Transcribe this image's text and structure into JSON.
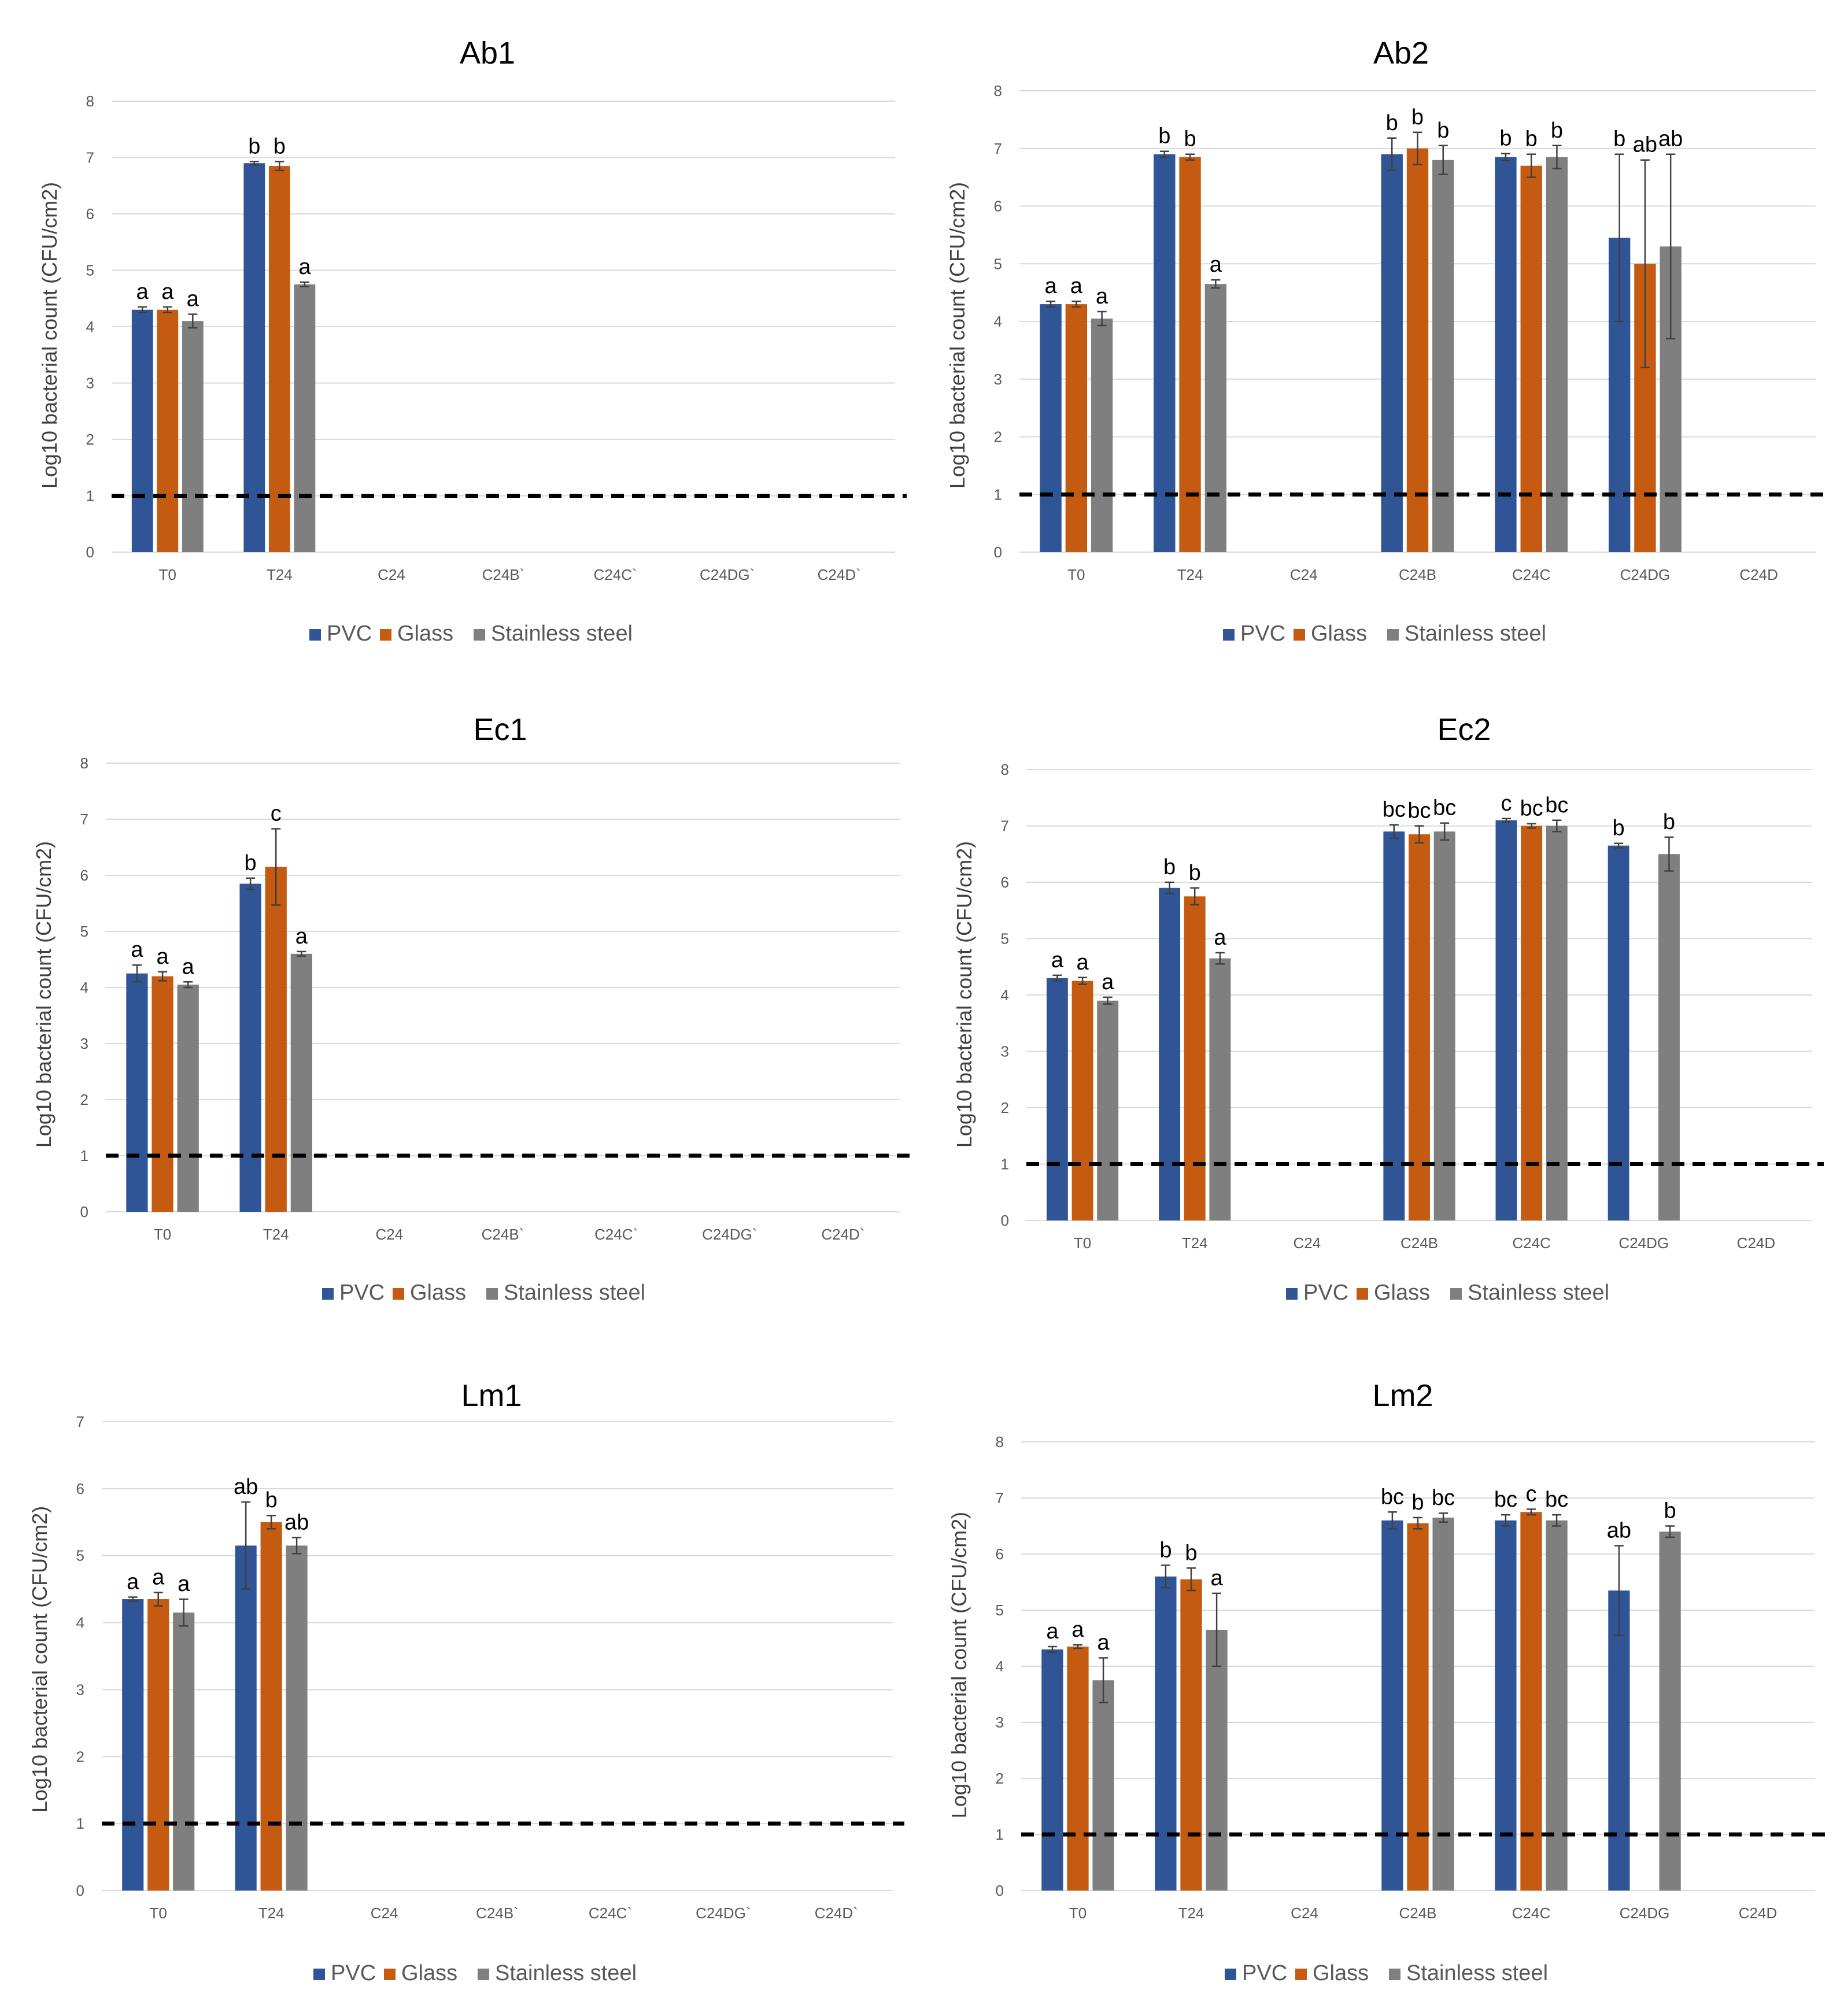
{
  "colors": {
    "PVC": "#2f5597",
    "Glass": "#c55a11",
    "Stainless steel": "#7f7f7f",
    "gridline": "#d9d9d9",
    "detection_line": "#000000"
  },
  "legend": [
    "PVC",
    "Glass",
    "Stainless steel"
  ],
  "chart_data": [
    {
      "type": "bar",
      "title": "Ab1",
      "ylabel": "Log10 bacterial count (CFU/cm2)",
      "ylim": [
        0,
        8
      ],
      "yticks": [
        0,
        1,
        2,
        3,
        4,
        5,
        6,
        7,
        8
      ],
      "grid": true,
      "legend_position": "bottom",
      "detection_limit": 1,
      "categories": [
        "T0",
        "T24",
        "C24",
        "C24B`",
        "C24C`",
        "C24DG`",
        "C24D`"
      ],
      "series": [
        {
          "name": "PVC",
          "values": [
            4.3,
            6.9,
            null,
            null,
            null,
            null,
            null
          ],
          "errors": [
            0.05,
            0.03,
            null,
            null,
            null,
            null,
            null
          ],
          "letters": [
            "a",
            "b",
            null,
            null,
            null,
            null,
            null
          ]
        },
        {
          "name": "Glass",
          "values": [
            4.3,
            6.85,
            null,
            null,
            null,
            null,
            null
          ],
          "errors": [
            0.05,
            0.08,
            null,
            null,
            null,
            null,
            null
          ],
          "letters": [
            "a",
            "b",
            null,
            null,
            null,
            null,
            null
          ]
        },
        {
          "name": "Stainless steel",
          "values": [
            4.1,
            4.75,
            null,
            null,
            null,
            null,
            null
          ],
          "errors": [
            0.12,
            0.04,
            null,
            null,
            null,
            null,
            null
          ],
          "letters": [
            "a",
            "a",
            null,
            null,
            null,
            null,
            null
          ]
        }
      ]
    },
    {
      "type": "bar",
      "title": "Ab2",
      "ylabel": "Log10 bacterial count (CFU/cm2)",
      "ylim": [
        0,
        8
      ],
      "yticks": [
        0,
        1,
        2,
        3,
        4,
        5,
        6,
        7,
        8
      ],
      "grid": true,
      "legend_position": "bottom",
      "detection_limit": 1,
      "categories": [
        "T0",
        "T24",
        "C24",
        "C24B",
        "C24C",
        "C24DG",
        "C24D"
      ],
      "series": [
        {
          "name": "PVC",
          "values": [
            4.3,
            6.9,
            null,
            6.9,
            6.85,
            5.45,
            null
          ],
          "errors": [
            0.05,
            0.05,
            null,
            0.28,
            0.06,
            1.45,
            null
          ],
          "letters": [
            "a",
            "b",
            null,
            "b",
            "b",
            "b",
            null
          ]
        },
        {
          "name": "Glass",
          "values": [
            4.3,
            6.85,
            null,
            7.0,
            6.7,
            5.0,
            null
          ],
          "errors": [
            0.05,
            0.05,
            null,
            0.28,
            0.2,
            1.8,
            null
          ],
          "letters": [
            "a",
            "b",
            null,
            "b",
            "b",
            "ab",
            null
          ]
        },
        {
          "name": "Stainless steel",
          "values": [
            4.05,
            4.65,
            null,
            6.8,
            6.85,
            5.3,
            null
          ],
          "errors": [
            0.12,
            0.07,
            null,
            0.25,
            0.2,
            1.6,
            null
          ],
          "letters": [
            "a",
            "a",
            null,
            "b",
            "b",
            "ab",
            null
          ]
        }
      ]
    },
    {
      "type": "bar",
      "title": "Ec1",
      "ylabel": "Log10 bacterial count (CFU/cm2)",
      "ylim": [
        0,
        8
      ],
      "yticks": [
        0,
        1,
        2,
        3,
        4,
        5,
        6,
        7,
        8
      ],
      "grid": true,
      "legend_position": "bottom",
      "detection_limit": 1,
      "categories": [
        "T0",
        "T24",
        "C24",
        "C24B`",
        "C24C`",
        "C24DG`",
        "C24D`"
      ],
      "series": [
        {
          "name": "PVC",
          "values": [
            4.25,
            5.85,
            null,
            null,
            null,
            null,
            null
          ],
          "errors": [
            0.15,
            0.1,
            null,
            null,
            null,
            null,
            null
          ],
          "letters": [
            "a",
            "b",
            null,
            null,
            null,
            null,
            null
          ]
        },
        {
          "name": "Glass",
          "values": [
            4.2,
            6.15,
            null,
            null,
            null,
            null,
            null
          ],
          "errors": [
            0.08,
            0.68,
            null,
            null,
            null,
            null,
            null
          ],
          "letters": [
            "a",
            "c",
            null,
            null,
            null,
            null,
            null
          ]
        },
        {
          "name": "Stainless steel",
          "values": [
            4.05,
            4.6,
            null,
            null,
            null,
            null,
            null
          ],
          "errors": [
            0.05,
            0.04,
            null,
            null,
            null,
            null,
            null
          ],
          "letters": [
            "a",
            "a",
            null,
            null,
            null,
            null,
            null
          ]
        }
      ]
    },
    {
      "type": "bar",
      "title": "Ec2",
      "ylabel": "Log10 bacterial count (CFU/cm2)",
      "ylim": [
        0,
        8
      ],
      "yticks": [
        0,
        1,
        2,
        3,
        4,
        5,
        6,
        7,
        8
      ],
      "grid": true,
      "legend_position": "bottom",
      "detection_limit": 1,
      "categories": [
        "T0",
        "T24",
        "C24",
        "C24B",
        "C24C",
        "C24DG",
        "C24D"
      ],
      "series": [
        {
          "name": "PVC",
          "values": [
            4.3,
            5.9,
            null,
            6.9,
            7.1,
            6.65,
            null
          ],
          "errors": [
            0.05,
            0.1,
            null,
            0.12,
            0.03,
            0.04,
            null
          ],
          "letters": [
            "a",
            "b",
            null,
            "bc",
            "c",
            "b",
            null
          ]
        },
        {
          "name": "Glass",
          "values": [
            4.25,
            5.75,
            null,
            6.85,
            7.0,
            null,
            null
          ],
          "errors": [
            0.06,
            0.15,
            null,
            0.15,
            0.04,
            null,
            null
          ],
          "letters": [
            "a",
            "b",
            null,
            "bc",
            "bc",
            null,
            null
          ]
        },
        {
          "name": "Stainless steel",
          "values": [
            3.9,
            4.65,
            null,
            6.9,
            7.0,
            6.5,
            null
          ],
          "errors": [
            0.06,
            0.1,
            null,
            0.15,
            0.1,
            0.3,
            null
          ],
          "letters": [
            "a",
            "a",
            null,
            "bc",
            "bc",
            "b",
            null
          ]
        }
      ]
    },
    {
      "type": "bar",
      "title": "Lm1",
      "ylabel": "Log10 bacterial count (CFU/cm2)",
      "ylim": [
        0,
        7
      ],
      "yticks": [
        0,
        1,
        2,
        3,
        4,
        5,
        6,
        7
      ],
      "grid": true,
      "legend_position": "bottom",
      "detection_limit": 1,
      "categories": [
        "T0",
        "T24",
        "C24",
        "C24B`",
        "C24C`",
        "C24DG`",
        "C24D`"
      ],
      "series": [
        {
          "name": "PVC",
          "values": [
            4.35,
            5.15,
            null,
            null,
            null,
            null,
            null
          ],
          "errors": [
            0.03,
            0.65,
            null,
            null,
            null,
            null,
            null
          ],
          "letters": [
            "a",
            "ab",
            null,
            null,
            null,
            null,
            null
          ]
        },
        {
          "name": "Glass",
          "values": [
            4.35,
            5.5,
            null,
            null,
            null,
            null,
            null
          ],
          "errors": [
            0.1,
            0.1,
            null,
            null,
            null,
            null,
            null
          ],
          "letters": [
            "a",
            "b",
            null,
            null,
            null,
            null,
            null
          ]
        },
        {
          "name": "Stainless steel",
          "values": [
            4.15,
            5.15,
            null,
            null,
            null,
            null,
            null
          ],
          "errors": [
            0.2,
            0.12,
            null,
            null,
            null,
            null,
            null
          ],
          "letters": [
            "a",
            "ab",
            null,
            null,
            null,
            null,
            null
          ]
        }
      ]
    },
    {
      "type": "bar",
      "title": "Lm2",
      "ylabel": "Log10 bacterial count (CFU/cm2)",
      "ylim": [
        0,
        8
      ],
      "yticks": [
        0,
        1,
        2,
        3,
        4,
        5,
        6,
        7,
        8
      ],
      "grid": true,
      "legend_position": "bottom",
      "detection_limit": 1,
      "categories": [
        "T0",
        "T24",
        "C24",
        "C24B",
        "C24C",
        "C24DG",
        "C24D"
      ],
      "series": [
        {
          "name": "PVC",
          "values": [
            4.3,
            5.6,
            null,
            6.6,
            6.6,
            5.35,
            null
          ],
          "errors": [
            0.05,
            0.2,
            null,
            0.15,
            0.1,
            0.8,
            null
          ],
          "letters": [
            "a",
            "b",
            null,
            "bc",
            "bc",
            "ab",
            null
          ]
        },
        {
          "name": "Glass",
          "values": [
            4.35,
            5.55,
            null,
            6.55,
            6.75,
            null,
            null
          ],
          "errors": [
            0.03,
            0.2,
            null,
            0.1,
            0.05,
            null,
            null
          ],
          "letters": [
            "a",
            "b",
            null,
            "b",
            "c",
            null,
            null
          ]
        },
        {
          "name": "Stainless steel",
          "values": [
            3.75,
            4.65,
            null,
            6.65,
            6.6,
            6.4,
            null
          ],
          "errors": [
            0.4,
            0.65,
            null,
            0.08,
            0.1,
            0.1,
            null
          ],
          "letters": [
            "a",
            "a",
            null,
            "bc",
            "bc",
            "b",
            null
          ]
        }
      ]
    }
  ]
}
